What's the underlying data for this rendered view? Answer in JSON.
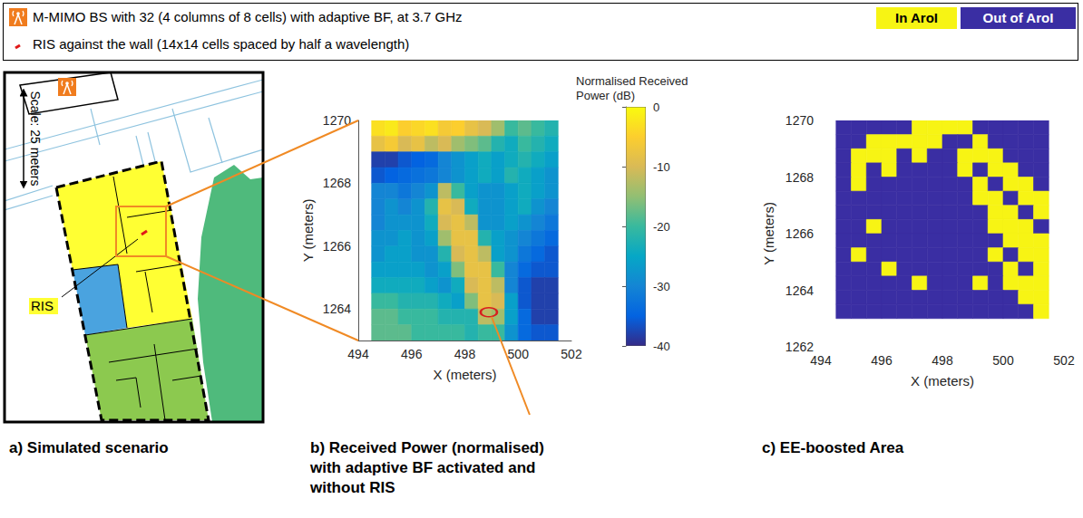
{
  "banner": {
    "items": [
      {
        "marker": "antenna",
        "text": "M-MIMO BS with 32 (4 columns of 8 cells) with adaptive BF, at 3.7 GHz"
      },
      {
        "marker": "ris",
        "text": "RIS against the wall (14x14 cells spaced by half a wavelength)"
      }
    ]
  },
  "panel_a": {
    "caption": "a) Simulated scenario",
    "scale_label": "Scale: 25 meters",
    "ris_label": "RIS"
  },
  "chart_data": [
    {
      "type": "heatmap",
      "caption": "b) Received Power (normalised) with adaptive BF activated and without RIS",
      "x_label": "X (meters)",
      "y_label": "Y (meters)",
      "xlim": [
        494,
        502
      ],
      "xticks": [
        494,
        496,
        498,
        500,
        502
      ],
      "ylim": [
        1263,
        1270
      ],
      "yticks": [
        1264,
        1266,
        1268,
        1270
      ],
      "x": [
        494.75,
        495.25,
        495.75,
        496.25,
        496.75,
        497.25,
        497.75,
        498.25,
        498.75,
        499.25,
        499.75,
        500.25,
        500.75,
        501.25
      ],
      "y": [
        1269.75,
        1269.25,
        1268.75,
        1268.25,
        1267.75,
        1267.25,
        1266.75,
        1266.25,
        1265.75,
        1265.25,
        1264.75,
        1264.25,
        1263.75,
        1263.25
      ],
      "values": [
        [
          -3,
          -2,
          -5,
          -4,
          -3,
          -6,
          -5,
          -8,
          -10,
          -14,
          -20,
          -18,
          -20,
          -22
        ],
        [
          -8,
          -6,
          -10,
          -8,
          -12,
          -10,
          -14,
          -16,
          -18,
          -22,
          -24,
          -20,
          -22,
          -24
        ],
        [
          -38,
          -38,
          -36,
          -35,
          -34,
          -30,
          -28,
          -26,
          -24,
          -26,
          -24,
          -22,
          -24,
          -26
        ],
        [
          -36,
          -35,
          -34,
          -33,
          -32,
          -30,
          -28,
          -26,
          -24,
          -26,
          -22,
          -24,
          -26,
          -28
        ],
        [
          -30,
          -30,
          -32,
          -30,
          -28,
          -12,
          -20,
          -26,
          -28,
          -28,
          -26,
          -24,
          -26,
          -28
        ],
        [
          -30,
          -28,
          -30,
          -28,
          -22,
          -8,
          -10,
          -24,
          -28,
          -28,
          -26,
          -24,
          -28,
          -30
        ],
        [
          -30,
          -28,
          -28,
          -28,
          -24,
          -10,
          -8,
          -12,
          -28,
          -28,
          -26,
          -28,
          -30,
          -32
        ],
        [
          -28,
          -28,
          -26,
          -28,
          -26,
          -14,
          -8,
          -8,
          -22,
          -26,
          -28,
          -30,
          -32,
          -34
        ],
        [
          -28,
          -26,
          -26,
          -28,
          -28,
          -22,
          -10,
          -8,
          -12,
          -26,
          -28,
          -32,
          -34,
          -36
        ],
        [
          -26,
          -26,
          -26,
          -26,
          -28,
          -26,
          -16,
          -8,
          -8,
          -20,
          -30,
          -34,
          -36,
          -36
        ],
        [
          -24,
          -24,
          -24,
          -24,
          -26,
          -28,
          -24,
          -10,
          -8,
          -12,
          -30,
          -36,
          -38,
          -38
        ],
        [
          -20,
          -20,
          -22,
          -22,
          -22,
          -24,
          -26,
          -16,
          -8,
          -10,
          -26,
          -36,
          -38,
          -38
        ],
        [
          -18,
          -18,
          -20,
          -20,
          -20,
          -22,
          -22,
          -22,
          -12,
          -14,
          -26,
          -34,
          -38,
          -38
        ],
        [
          -18,
          -18,
          -18,
          -20,
          -20,
          -20,
          -20,
          -22,
          -20,
          -20,
          -28,
          -34,
          -36,
          -36
        ]
      ],
      "colorbar": {
        "label": "Normalised Received Power (dB)",
        "range": [
          -40,
          0
        ],
        "ticks": [
          -40,
          -30,
          -20,
          -10,
          0
        ]
      },
      "marked_point": {
        "x": 498.9,
        "y": 1263.9
      }
    },
    {
      "type": "heatmap",
      "caption": "c) EE-boosted Area",
      "x_label": "X (meters)",
      "y_label": "Y (meters)",
      "xlim": [
        494,
        502
      ],
      "xticks": [
        494,
        496,
        498,
        500,
        502
      ],
      "ylim": [
        1262,
        1270
      ],
      "yticks": [
        1262,
        1264,
        1266,
        1268,
        1270
      ],
      "x": [
        494.75,
        495.25,
        495.75,
        496.25,
        496.75,
        497.25,
        497.75,
        498.25,
        498.75,
        499.25,
        499.75,
        500.25,
        500.75,
        501.25
      ],
      "y": [
        1269.75,
        1269.25,
        1268.75,
        1268.25,
        1267.75,
        1267.25,
        1266.75,
        1266.25,
        1265.75,
        1265.25,
        1264.75,
        1264.25,
        1263.75,
        1263.25
      ],
      "values": [
        [
          0,
          0,
          0,
          0,
          0,
          1,
          1,
          1,
          1,
          0,
          0,
          0,
          0,
          0
        ],
        [
          0,
          0,
          1,
          1,
          1,
          1,
          1,
          0,
          0,
          1,
          0,
          0,
          0,
          0
        ],
        [
          0,
          1,
          1,
          1,
          0,
          1,
          0,
          0,
          1,
          1,
          1,
          0,
          0,
          0
        ],
        [
          0,
          1,
          0,
          1,
          0,
          0,
          0,
          0,
          1,
          0,
          1,
          1,
          0,
          0
        ],
        [
          0,
          1,
          0,
          0,
          0,
          0,
          0,
          0,
          0,
          1,
          0,
          1,
          1,
          0
        ],
        [
          0,
          0,
          0,
          0,
          0,
          0,
          0,
          0,
          0,
          1,
          1,
          0,
          1,
          1
        ],
        [
          0,
          0,
          0,
          0,
          0,
          0,
          0,
          0,
          0,
          0,
          1,
          1,
          0,
          1
        ],
        [
          0,
          0,
          1,
          0,
          0,
          0,
          0,
          0,
          0,
          0,
          1,
          1,
          1,
          0
        ],
        [
          0,
          0,
          0,
          0,
          0,
          0,
          0,
          0,
          0,
          0,
          0,
          1,
          1,
          1
        ],
        [
          0,
          1,
          0,
          0,
          0,
          0,
          0,
          0,
          0,
          0,
          1,
          0,
          1,
          1
        ],
        [
          0,
          0,
          0,
          1,
          0,
          0,
          0,
          0,
          0,
          0,
          0,
          1,
          0,
          1
        ],
        [
          0,
          0,
          0,
          0,
          0,
          1,
          0,
          0,
          0,
          1,
          0,
          1,
          1,
          1
        ],
        [
          0,
          0,
          0,
          0,
          0,
          0,
          0,
          0,
          0,
          0,
          0,
          0,
          1,
          1
        ],
        [
          0,
          0,
          0,
          0,
          0,
          0,
          0,
          0,
          0,
          0,
          0,
          0,
          0,
          1
        ]
      ],
      "classes": [
        {
          "value": 1,
          "label": "In AroI",
          "color": "#f7f414"
        },
        {
          "value": 0,
          "label": "Out of AroI",
          "color": "#3a2ea3"
        }
      ]
    }
  ]
}
